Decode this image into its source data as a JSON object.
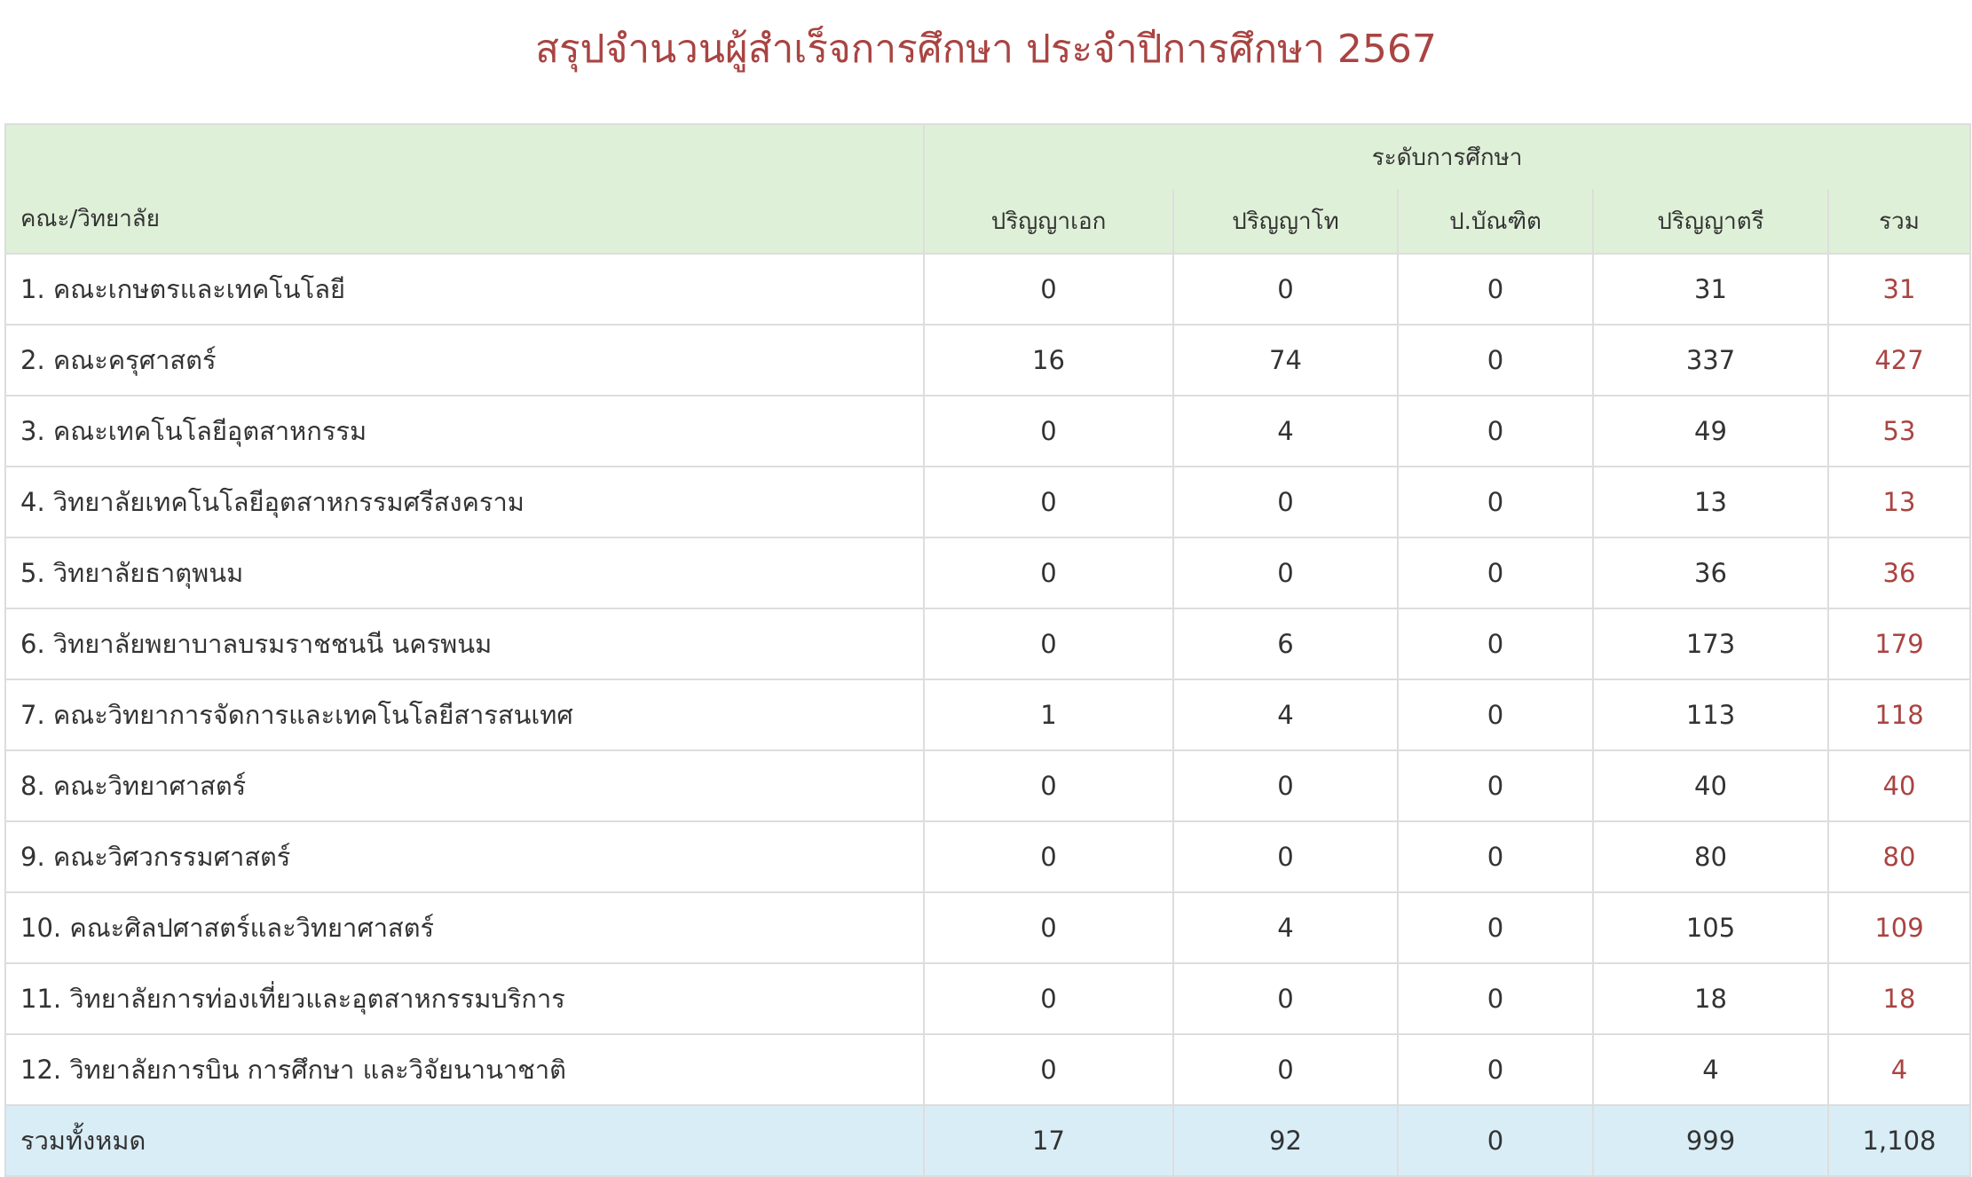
{
  "title": "สรุปจำนวนผู้สำเร็จการศึกษา ประจำปีการศึกษา 2567",
  "colors": {
    "title": "#a94442",
    "header_bg": "#dff0d8",
    "total_row_bg": "#d9edf7",
    "total_col": "#a94442"
  },
  "table": {
    "faculty_header": "คณะ/วิทยาลัย",
    "group_header": "ระดับการศึกษา",
    "columns": [
      "ปริญญาเอก",
      "ปริญญาโท",
      "ป.บัณฑิต",
      "ปริญญาตรี",
      "รวม"
    ],
    "rows": [
      {
        "name": "1. คณะเกษตรและเทคโนโลยี",
        "values": [
          "0",
          "0",
          "0",
          "31",
          "31"
        ]
      },
      {
        "name": "2. คณะครุศาสตร์",
        "values": [
          "16",
          "74",
          "0",
          "337",
          "427"
        ]
      },
      {
        "name": "3. คณะเทคโนโลยีอุตสาหกรรม",
        "values": [
          "0",
          "4",
          "0",
          "49",
          "53"
        ]
      },
      {
        "name": "4. วิทยาลัยเทคโนโลยีอุตสาหกรรมศรีสงคราม",
        "values": [
          "0",
          "0",
          "0",
          "13",
          "13"
        ]
      },
      {
        "name": "5. วิทยาลัยธาตุพนม",
        "values": [
          "0",
          "0",
          "0",
          "36",
          "36"
        ]
      },
      {
        "name": "6. วิทยาลัยพยาบาลบรมราชชนนี นครพนม",
        "values": [
          "0",
          "6",
          "0",
          "173",
          "179"
        ]
      },
      {
        "name": "7. คณะวิทยาการจัดการและเทคโนโลยีสารสนเทศ",
        "values": [
          "1",
          "4",
          "0",
          "113",
          "118"
        ]
      },
      {
        "name": "8. คณะวิทยาศาสตร์",
        "values": [
          "0",
          "0",
          "0",
          "40",
          "40"
        ]
      },
      {
        "name": "9. คณะวิศวกรรมศาสตร์",
        "values": [
          "0",
          "0",
          "0",
          "80",
          "80"
        ]
      },
      {
        "name": "10. คณะศิลปศาสตร์และวิทยาศาสตร์",
        "values": [
          "0",
          "4",
          "0",
          "105",
          "109"
        ]
      },
      {
        "name": "11. วิทยาลัยการท่องเที่ยวและอุตสาหกรรมบริการ",
        "values": [
          "0",
          "0",
          "0",
          "18",
          "18"
        ]
      },
      {
        "name": "12. วิทยาลัยการบิน การศึกษา และวิจัยนานาชาติ",
        "values": [
          "0",
          "0",
          "0",
          "4",
          "4"
        ]
      }
    ],
    "total": {
      "name": "รวมทั้งหมด",
      "values": [
        "17",
        "92",
        "0",
        "999",
        "1,108"
      ]
    }
  }
}
